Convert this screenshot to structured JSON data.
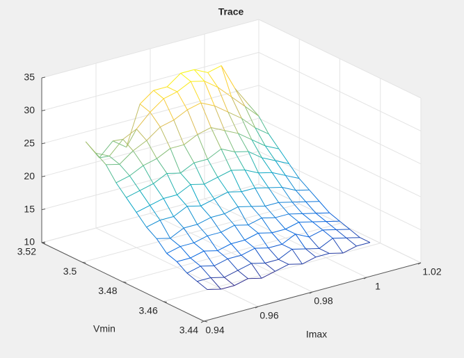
{
  "chart_data": {
    "type": "mesh",
    "title": "Trace",
    "xlabel": "Imax",
    "ylabel": "Vmin",
    "x": [
      0.945,
      0.95,
      0.955,
      0.96,
      0.965,
      0.97,
      0.975,
      0.98,
      0.985,
      0.99,
      0.995,
      1.0,
      1.005
    ],
    "y": [
      3.445,
      3.45,
      3.455,
      3.46,
      3.465,
      3.47,
      3.475,
      3.48,
      3.485,
      3.49,
      3.495,
      3.5,
      3.505
    ],
    "z": [
      [
        13.5,
        13,
        13,
        13.5,
        13,
        13.5,
        14,
        13.5,
        14,
        14,
        13.5,
        14,
        14
      ],
      [
        14,
        14,
        13.5,
        14,
        14.5,
        14,
        14,
        15,
        14.5,
        14,
        15,
        14.5,
        14
      ],
      [
        14.5,
        15,
        14.5,
        15,
        15,
        15.5,
        15,
        15,
        16,
        15,
        15.5,
        15,
        14.5
      ],
      [
        15.5,
        15.5,
        16,
        15.5,
        16,
        16,
        16.5,
        16,
        16,
        16.5,
        16,
        15.5,
        15
      ],
      [
        16,
        16.5,
        16.5,
        17,
        17,
        17.5,
        17,
        17.5,
        17,
        17,
        16.5,
        16,
        15.5
      ],
      [
        17.5,
        17,
        18,
        18,
        18.5,
        18.5,
        19,
        18.5,
        18,
        18,
        17.5,
        17,
        16.5
      ],
      [
        18.5,
        19,
        19,
        20,
        19.5,
        20,
        20.5,
        20,
        20,
        19.5,
        19,
        18,
        17.5
      ],
      [
        20,
        20.5,
        21,
        21,
        22,
        21.5,
        22,
        22.5,
        22,
        21,
        20.5,
        19.5,
        18.5
      ],
      [
        21.5,
        22,
        22.5,
        23.5,
        23,
        24,
        24,
        25,
        24,
        23.5,
        22,
        21,
        20
      ],
      [
        23,
        23.5,
        24.5,
        25,
        26,
        26,
        27,
        27.5,
        26.5,
        25.5,
        24,
        22.5,
        21.5
      ],
      [
        25,
        24.5,
        26,
        27,
        28.5,
        29,
        30,
        30.5,
        29.5,
        28,
        26.5,
        24.5,
        23
      ],
      [
        26,
        25,
        27,
        28,
        30,
        31.5,
        32,
        33,
        32.5,
        31,
        29,
        27,
        25
      ],
      [
        27,
        24,
        26,
        24.5,
        30.5,
        32,
        32,
        33.5,
        33.5,
        32.5,
        33,
        29,
        26
      ]
    ],
    "xlim": [
      0.94,
      1.02
    ],
    "ylim": [
      3.44,
      3.52
    ],
    "zlim": [
      10,
      35
    ],
    "xticks": [
      0.94,
      0.96,
      0.98,
      1,
      1.02
    ],
    "yticks": [
      3.44,
      3.46,
      3.48,
      3.5,
      3.52
    ],
    "zticks": [
      10,
      15,
      20,
      25,
      30,
      35
    ],
    "grid": true,
    "colormap": [
      "#352a87",
      "#0363e1",
      "#1485d4",
      "#06a7c6",
      "#38b99e",
      "#92bf73",
      "#d9ba56",
      "#fcce2e",
      "#f9fb0e"
    ]
  }
}
